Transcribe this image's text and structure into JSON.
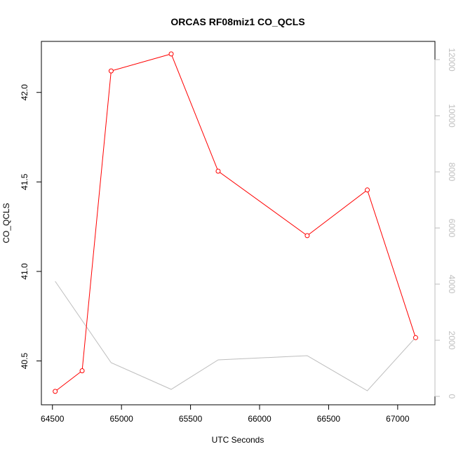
{
  "chart_data": {
    "type": "line",
    "title": "ORCAS RF08miz1 CO_QCLS",
    "xlabel": "UTC Seconds",
    "ylabel": "CO_QCLS",
    "xlim": [
      64420,
      67270
    ],
    "ylim": [
      40.255,
      42.285
    ],
    "x_ticks": [
      64500,
      65000,
      65500,
      66000,
      66500,
      67000
    ],
    "y_ticks": [
      40.5,
      41.0,
      41.5,
      42.0
    ],
    "y_tick_labels": [
      "40.5",
      "41.0",
      "41.5",
      "42.0"
    ],
    "secondary_ylim": [
      -300,
      12650
    ],
    "secondary_y_ticks": [
      0,
      2000,
      4000,
      6000,
      8000,
      10000,
      12000
    ],
    "grid": false,
    "series": [
      {
        "axis": "left",
        "color": "#ff0000",
        "markers": "open-circle",
        "x": [
          64520,
          64715,
          64925,
          65360,
          65700,
          66345,
          66780,
          67130
        ],
        "y": [
          40.33,
          40.445,
          42.12,
          42.215,
          41.56,
          41.2,
          41.455,
          40.63
        ]
      },
      {
        "axis": "right",
        "color": "#bebebe",
        "markers": "none",
        "x": [
          64520,
          64925,
          65360,
          65700,
          66345,
          66780,
          67130
        ],
        "y": [
          4100,
          1200,
          250,
          1300,
          1450,
          200,
          2100
        ]
      }
    ]
  }
}
